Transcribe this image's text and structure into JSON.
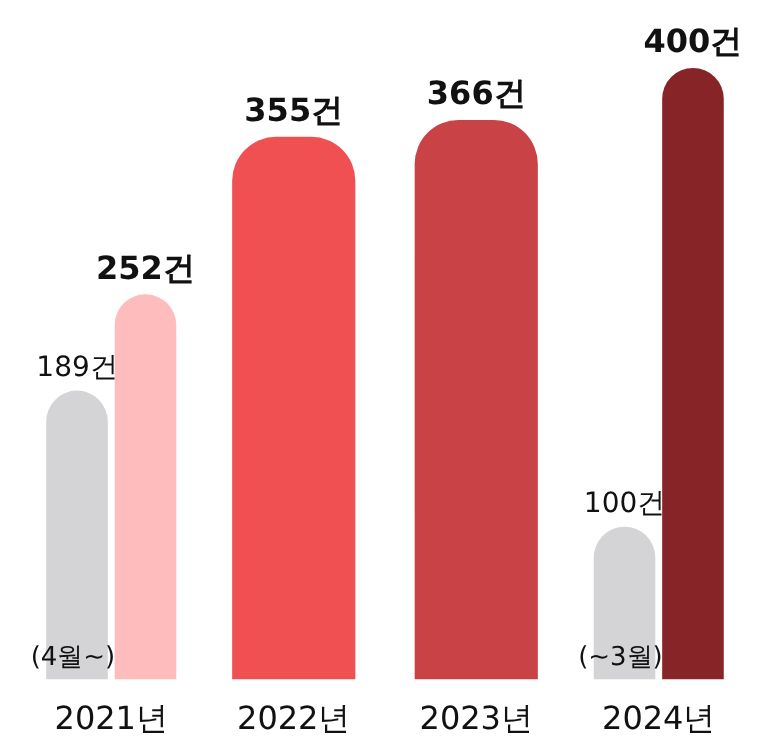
{
  "chart_data": {
    "type": "bar",
    "categories": [
      "2021년",
      "2022년",
      "2023년",
      "2024년"
    ],
    "series": [
      {
        "color": "#d4d4d6",
        "values": [
          189,
          null,
          null,
          100
        ],
        "value_labels": [
          "189건",
          null,
          null,
          "100건"
        ]
      },
      {
        "colors": [
          "#ffbcbc",
          "#f05052",
          "#c94346",
          "#862427"
        ],
        "values": [
          252,
          355,
          366,
          400
        ],
        "value_labels": [
          "252건",
          "355건",
          "366건",
          "400건"
        ]
      }
    ],
    "annotations": [
      {
        "text": "(4월~)",
        "x": "2021년",
        "y": 0
      },
      {
        "text": "(~3월)",
        "x": "2024년",
        "y": 0
      }
    ],
    "grid": false,
    "legend": false,
    "tick_labels": "x"
  }
}
